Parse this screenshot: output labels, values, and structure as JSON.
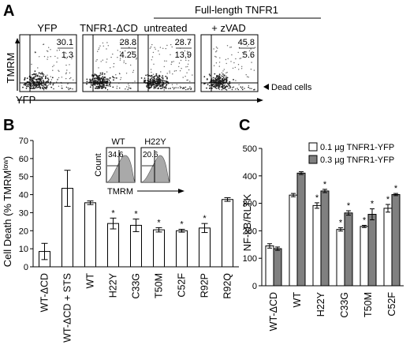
{
  "panel_a": {
    "letter": "A",
    "header_group": "Full-length TNFR1",
    "columns": [
      {
        "label": "YFP",
        "upper": "30.1",
        "lower": "1.3"
      },
      {
        "label": "TNFR1-ΔCD",
        "upper": "28.8",
        "lower": "4.25"
      },
      {
        "label": "untreated",
        "upper": "28.7",
        "lower": "13.9"
      },
      {
        "label": "+ zVAD",
        "upper": "45.8",
        "lower": "5.6"
      }
    ],
    "y_axis_label": "TMRM",
    "x_axis_label": "YFP",
    "dead_cells_label": "Dead cells"
  },
  "panel_b": {
    "letter": "B",
    "ylabel": "Cell Death (% TMRM",
    "ylabel_superscript": "low",
    "ylabel_close": ")",
    "inset": {
      "wt_label": "WT",
      "mut_label": "H22Y",
      "wt_value": "34.6",
      "mut_value": "20.6",
      "count_label": "Count",
      "tmrm_label": "TMRM"
    }
  },
  "panel_c": {
    "letter": "C",
    "ylabel": "NF-κB/RLTK",
    "legend": [
      "0.1 µg TNFR1-YFP",
      "0.3 µg TNFR1-YFP"
    ]
  },
  "chart_data": [
    {
      "type": "bar",
      "panel": "B",
      "categories": [
        "WT-ΔCD",
        "WT-ΔCD + STS",
        "WT",
        "H22Y",
        "C33G",
        "T50M",
        "C52F",
        "R92P",
        "R92Q"
      ],
      "values": [
        8.5,
        43.5,
        35.5,
        24,
        23,
        20.5,
        20,
        21.5,
        37.3
      ],
      "errors": [
        4.5,
        10,
        1,
        3,
        3.5,
        1.2,
        0.8,
        2.5,
        1
      ],
      "significant": [
        false,
        false,
        false,
        true,
        true,
        true,
        true,
        true,
        false
      ],
      "ylabel": "Cell Death (% TMRMlow)",
      "ylim": [
        0,
        70
      ],
      "yticks": [
        0,
        10,
        20,
        30,
        40,
        50,
        60,
        70
      ],
      "significance_marker": "*"
    },
    {
      "type": "bar",
      "panel": "C",
      "categories": [
        "WT-ΔCD",
        "WT",
        "H22Y",
        "C33G",
        "T50M",
        "C52F"
      ],
      "series": [
        {
          "name": "0.1 µg TNFR1-YFP",
          "color": "#ffffff",
          "values": [
            145,
            330,
            292,
            205,
            216,
            282
          ],
          "errors": [
            8,
            6,
            10,
            6,
            4,
            14
          ],
          "significant": [
            false,
            false,
            true,
            true,
            true,
            true
          ]
        },
        {
          "name": "0.3 µg TNFR1-YFP",
          "color": "#808080",
          "values": [
            135,
            410,
            345,
            265,
            260,
            332
          ],
          "errors": [
            6,
            5,
            6,
            8,
            20,
            4
          ],
          "significant": [
            false,
            false,
            true,
            true,
            true,
            true
          ]
        }
      ],
      "ylabel": "NF-κB/RLTK",
      "ylim": [
        0,
        500
      ],
      "yticks": [
        0,
        100,
        200,
        300,
        400,
        500
      ],
      "significance_marker": "*"
    }
  ]
}
